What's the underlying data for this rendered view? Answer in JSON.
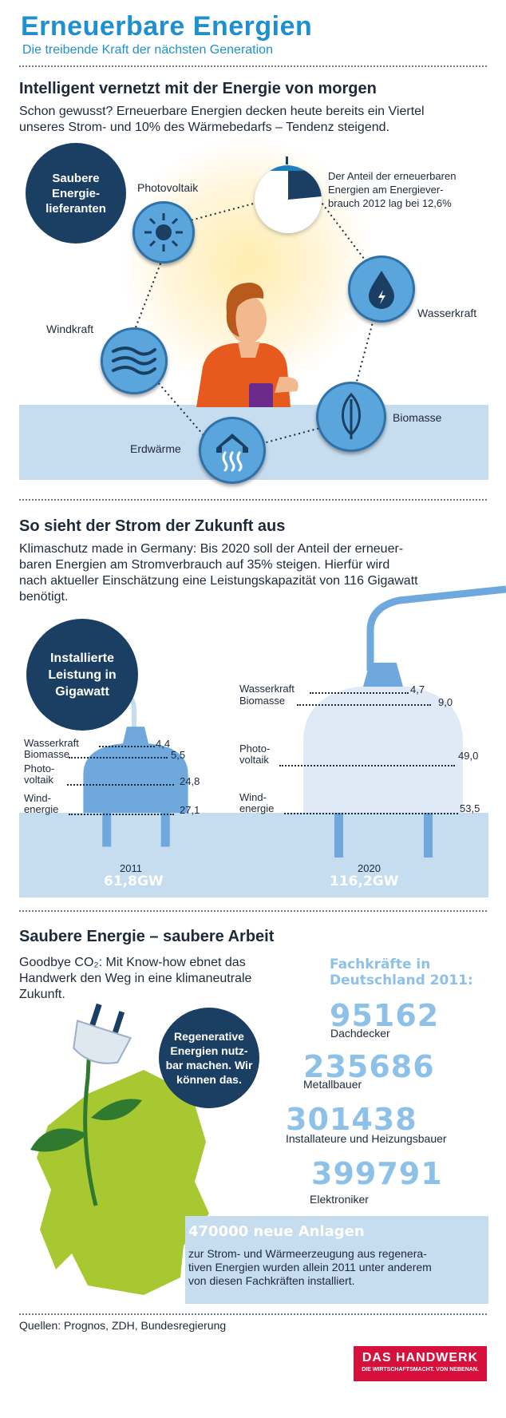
{
  "header": {
    "title": "Erneuerbare Energien",
    "subtitle": "Die treibende Kraft der nächsten Generation"
  },
  "section1": {
    "heading": "Intelligent vernetzt mit der Energie von morgen",
    "text_line1": "Schon gewusst? Erneuerbare Energien decken heute bereits ein Viertel",
    "text_line2": "unseres Strom- und 10% des Wärmebedarfs – Tendenz steigend.",
    "badge_line1": "Saubere",
    "badge_line2": "Energie-",
    "badge_line3": "lieferanten",
    "photovoltaik": "Photovoltaik",
    "windkraft": "Windkraft",
    "erdwaerme": "Erdwärme",
    "biomasse": "Biomasse",
    "wasserkraft": "Wasserkraft",
    "share_line1": "Der Anteil der erneuerbaren",
    "share_line2": "Energien am Energiever-",
    "share_line3": "brauch 2012 lag bei 12,6%"
  },
  "section2": {
    "heading": "So sieht der Strom der Zukunft aus",
    "text_line1": "Klimaschutz made in Germany: Bis 2020 soll der Anteil der erneuer-",
    "text_line2": "baren Energien am Stromverbrauch auf 35% steigen. Hierfür wird",
    "text_line3": "nach aktueller Einschätzung eine Leistungskapazität von 116 Gigawatt",
    "text_line4": "benötigt.",
    "badge_line1": "Installierte",
    "badge_line2": "Leistung in",
    "badge_line3": "Gigawatt"
  },
  "chart_data": {
    "type": "bar",
    "categories": [
      "Wasserkraft",
      "Biomasse",
      "Photovoltaik",
      "Windenergie"
    ],
    "series": [
      {
        "name": "2011",
        "values": [
          4.4,
          5.5,
          24.8,
          27.1
        ],
        "total_label": "61,8GW"
      },
      {
        "name": "2020",
        "values": [
          4.7,
          9.0,
          49.0,
          53.5
        ],
        "total_label": "116,2GW"
      }
    ],
    "value_labels_2011": [
      "4,4",
      "5,5",
      "24,8",
      "27,1"
    ],
    "value_labels_2020": [
      "4,7",
      "9,0",
      "49,0",
      "53,5"
    ],
    "category_labels": {
      "wasser": "Wasserkraft",
      "bio": "Biomasse",
      "photo1": "Photo-",
      "photo2": "voltaik",
      "wind1": "Wind-",
      "wind2": "energie"
    },
    "title": "Installierte Leistung in Gigawatt"
  },
  "section3": {
    "heading": "Saubere Energie – saubere Arbeit",
    "text_line1": "Goodbye CO₂: Mit Know-how ebnet das",
    "text_line2": "Handwerk den Weg in eine klimaneutrale",
    "text_line3": "Zukunft.",
    "badge_line1": "Regenerative",
    "badge_line2": "Energien nutz-",
    "badge_line3": "bar machen. Wir",
    "badge_line4": "können das.",
    "stats_title1": "Fachkräfte in",
    "stats_title2": "Deutschland 2011:",
    "stats": [
      {
        "value": "95162",
        "label": "Dachdecker"
      },
      {
        "value": "235686",
        "label": "Metallbauer"
      },
      {
        "value": "301438",
        "label": "Installateure und Heizungsbauer"
      },
      {
        "value": "399791",
        "label": "Elektroniker"
      }
    ],
    "box_title": "470000 neue Anlagen",
    "box_line1": "zur Strom- und Wärmeerzeugung aus regenera-",
    "box_line2": "tiven Energien wurden allein 2011 unter anderem",
    "box_line3": "von diesen Fachkräften installiert."
  },
  "footer": {
    "sources": "Quellen: Prognos, ZDH, Bundesregierung",
    "logo_main": "DAS HANDWERK",
    "logo_sub": "DIE WIRTSCHAFTSMACHT. VON NEBENAN."
  },
  "colors": {
    "title_blue": "#1e90cf",
    "navy": "#1b3f63",
    "icon_blue": "#5aa6dc",
    "pale_blue": "#c6dcef",
    "plug_2011": "#6ea8dc",
    "plug_2020": "#dfeaf6",
    "green": "#a8c832",
    "logo_red": "#d6103b"
  }
}
